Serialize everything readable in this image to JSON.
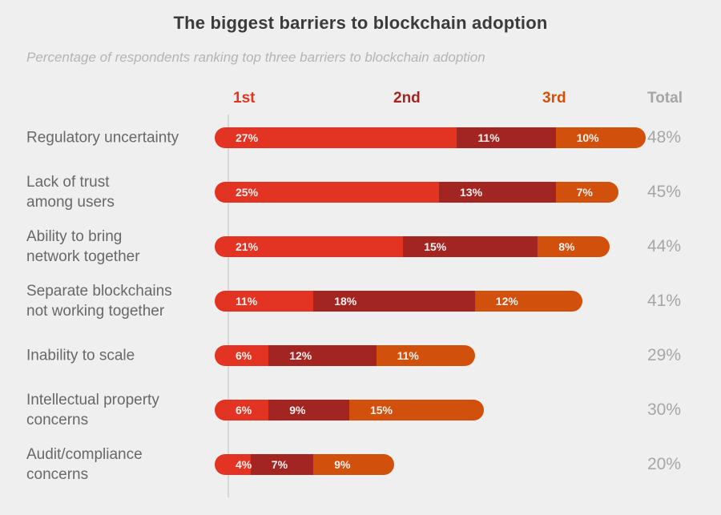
{
  "title": "The biggest barriers to blockchain adoption",
  "subtitle": "Percentage of respondents ranking top three barriers to blockchain adoption",
  "header": {
    "rank1": "1st",
    "rank2": "2nd",
    "rank3": "3rd",
    "total": "Total"
  },
  "colors": {
    "rank1": "#e33323",
    "rank2": "#a32522",
    "rank3": "#d1500c",
    "total_text": "#a6a6a6",
    "category_text": "#686868",
    "title_text": "#3b3b3b",
    "subtitle_text": "#b4b4b4",
    "axis_line": "#d8d8d8",
    "background": "#f0efef",
    "segment_label_text": "#faf1ef"
  },
  "chart_data": {
    "type": "bar",
    "orientation": "horizontal",
    "stacked": true,
    "grid": false,
    "legend_position": "top-as-column-headers",
    "series_names": [
      "1st",
      "2nd",
      "3rd"
    ],
    "value_unit": "%",
    "x_range": [
      0,
      50
    ],
    "categories": [
      "Regulatory uncertainty",
      "Lack of trust among users",
      "Ability to bring network together",
      "Separate blockchains not working together",
      "Inability to scale",
      "Intellectual property concerns",
      "Audit/compliance concerns"
    ],
    "rows": [
      {
        "label": "Regulatory uncertainty",
        "label_lines": [
          "Regulatory uncertainty"
        ],
        "values": [
          27,
          11,
          10
        ],
        "segment_labels": [
          "27%",
          "11%",
          "10%"
        ],
        "total": 48,
        "total_label": "48%"
      },
      {
        "label": "Lack of trust among users",
        "label_lines": [
          "Lack of trust",
          "among users"
        ],
        "values": [
          25,
          13,
          7
        ],
        "segment_labels": [
          "25%",
          "13%",
          "7%"
        ],
        "total": 45,
        "total_label": "45%"
      },
      {
        "label": "Ability to bring network together",
        "label_lines": [
          "Ability to bring",
          "network together"
        ],
        "values": [
          21,
          15,
          8
        ],
        "segment_labels": [
          "21%",
          "15%",
          "8%"
        ],
        "total": 44,
        "total_label": "44%"
      },
      {
        "label": "Separate blockchains not working together",
        "label_lines": [
          "Separate blockchains",
          "not working together"
        ],
        "values": [
          11,
          18,
          12
        ],
        "segment_labels": [
          "11%",
          "18%",
          "12%"
        ],
        "total": 41,
        "total_label": "41%"
      },
      {
        "label": "Inability to scale",
        "label_lines": [
          "Inability to scale"
        ],
        "values": [
          6,
          12,
          11
        ],
        "segment_labels": [
          "6%",
          "12%",
          "11%"
        ],
        "total": 29,
        "total_label": "29%"
      },
      {
        "label": "Intellectual property concerns",
        "label_lines": [
          "Intellectual property",
          "concerns"
        ],
        "values": [
          6,
          9,
          15
        ],
        "segment_labels": [
          "6%",
          "9%",
          "15%"
        ],
        "total": 30,
        "total_label": "30%"
      },
      {
        "label": "Audit/compliance concerns",
        "label_lines": [
          "Audit/compliance",
          "concerns"
        ],
        "values": [
          4,
          7,
          9
        ],
        "segment_labels": [
          "4%",
          "7%",
          "9%"
        ],
        "total": 20,
        "total_label": "20%"
      }
    ]
  }
}
